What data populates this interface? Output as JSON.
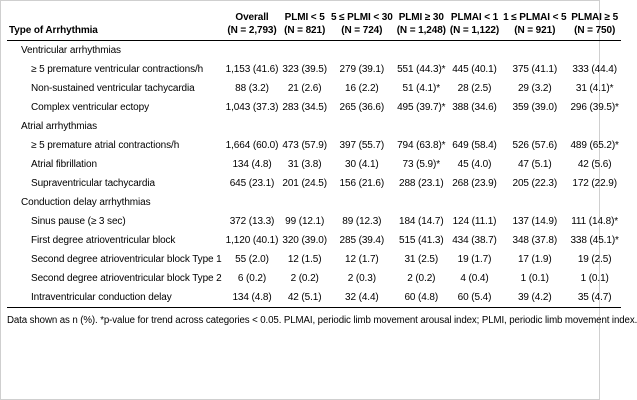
{
  "table": {
    "col0_header": "Type of Arrhythmia",
    "columns": [
      {
        "label": "Overall",
        "n": "(N = 2,793)"
      },
      {
        "label": "PLMI < 5",
        "n": "(N = 821)"
      },
      {
        "label": "5 ≤ PLMI < 30",
        "n": "(N = 724)"
      },
      {
        "label": "PLMI ≥ 30",
        "n": "(N = 1,248)"
      },
      {
        "label": "PLMAI < 1",
        "n": "(N = 1,122)"
      },
      {
        "label": "1 ≤ PLMAI < 5",
        "n": "(N = 921)"
      },
      {
        "label": "PLMAI ≥ 5",
        "n": "(N = 750)"
      }
    ],
    "rows": [
      {
        "type": "section",
        "label": "Ventricular arrhythmias",
        "values": []
      },
      {
        "type": "data",
        "label": "≥ 5 premature ventricular contractions/h",
        "values": [
          "1,153 (41.6)",
          "323 (39.5)",
          "279 (39.1)",
          "551 (44.3)*",
          "445 (40.1)",
          "375 (41.1)",
          "333 (44.4)"
        ]
      },
      {
        "type": "data",
        "label": "Non-sustained ventricular tachycardia",
        "values": [
          "88 (3.2)",
          "21 (2.6)",
          "16 (2.2)",
          "51 (4.1)*",
          "28 (2.5)",
          "29 (3.2)",
          "31 (4.1)*"
        ]
      },
      {
        "type": "data",
        "label": "Complex ventricular ectopy",
        "values": [
          "1,043 (37.3)",
          "283 (34.5)",
          "265 (36.6)",
          "495 (39.7)*",
          "388 (34.6)",
          "359 (39.0)",
          "296 (39.5)*"
        ]
      },
      {
        "type": "section",
        "label": "Atrial arrhythmias",
        "values": []
      },
      {
        "type": "data",
        "label": "≥ 5 premature atrial contractions/h",
        "values": [
          "1,664 (60.0)",
          "473 (57.9)",
          "397 (55.7)",
          "794 (63.8)*",
          "649 (58.4)",
          "526 (57.6)",
          "489 (65.2)*"
        ]
      },
      {
        "type": "data",
        "label": "Atrial fibrillation",
        "values": [
          "134 (4.8)",
          "31 (3.8)",
          "30 (4.1)",
          "73 (5.9)*",
          "45 (4.0)",
          "47 (5.1)",
          "42 (5.6)"
        ]
      },
      {
        "type": "data",
        "label": "Supraventricular tachycardia",
        "values": [
          "645 (23.1)",
          "201 (24.5)",
          "156 (21.6)",
          "288 (23.1)",
          "268 (23.9)",
          "205 (22.3)",
          "172 (22.9)"
        ]
      },
      {
        "type": "section",
        "label": "Conduction delay arrhythmias",
        "values": []
      },
      {
        "type": "data",
        "label": "Sinus pause (≥ 3 sec)",
        "values": [
          "372 (13.3)",
          "99 (12.1)",
          "89 (12.3)",
          "184 (14.7)",
          "124 (11.1)",
          "137 (14.9)",
          "111 (14.8)*"
        ]
      },
      {
        "type": "data",
        "label": "First degree atrioventricular block",
        "values": [
          "1,120 (40.1)",
          "320 (39.0)",
          "285 (39.4)",
          "515 (41.3)",
          "434 (38.7)",
          "348 (37.8)",
          "338 (45.1)*"
        ]
      },
      {
        "type": "data",
        "label": "Second degree atrioventricular block Type 1",
        "values": [
          "55 (2.0)",
          "12 (1.5)",
          "12 (1.7)",
          "31 (2.5)",
          "19 (1.7)",
          "17 (1.9)",
          "19 (2.5)"
        ]
      },
      {
        "type": "data",
        "label": "Second degree atrioventricular block Type 2",
        "values": [
          "6 (0.2)",
          "2 (0.2)",
          "2 (0.3)",
          "2 (0.2)",
          "4 (0.4)",
          "1 (0.1)",
          "1 (0.1)"
        ]
      },
      {
        "type": "data",
        "label": "Intraventricular conduction delay",
        "values": [
          "134 (4.8)",
          "42 (5.1)",
          "32 (4.4)",
          "60 (4.8)",
          "60 (5.4)",
          "39 (4.2)",
          "35 (4.7)"
        ]
      }
    ],
    "footnote": "Data shown as n (%). *p-value for trend across categories < 0.05. PLMAI, periodic limb movement arousal index; PLMI, periodic limb movement index."
  }
}
